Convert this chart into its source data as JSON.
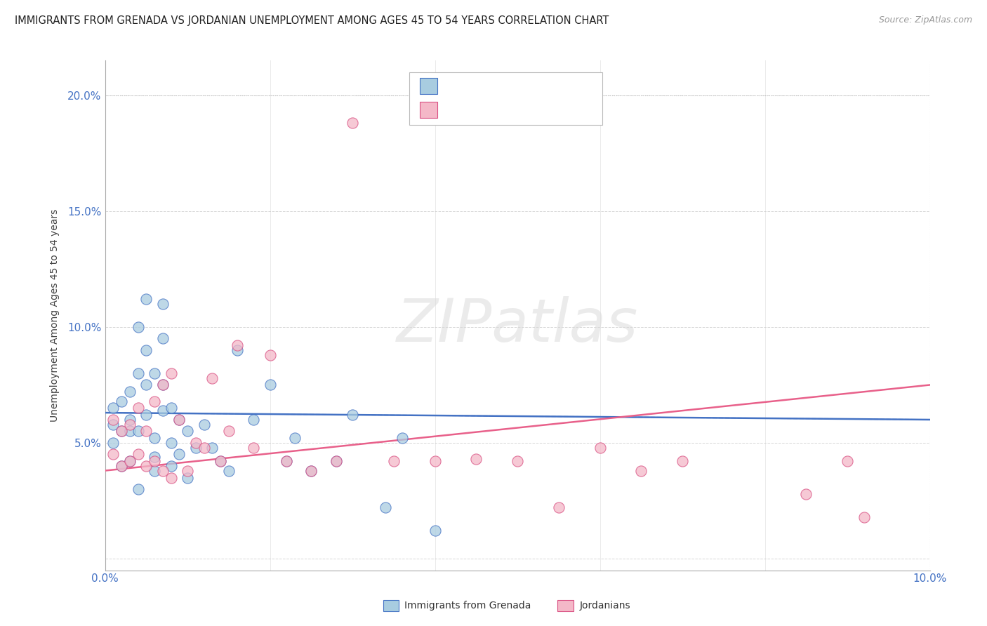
{
  "title": "IMMIGRANTS FROM GRENADA VS JORDANIAN UNEMPLOYMENT AMONG AGES 45 TO 54 YEARS CORRELATION CHART",
  "source": "Source: ZipAtlas.com",
  "ylabel": "Unemployment Among Ages 45 to 54 years",
  "xlim": [
    0.0,
    0.1
  ],
  "ylim": [
    -0.005,
    0.215
  ],
  "xticks": [
    0.0,
    0.02,
    0.04,
    0.06,
    0.08,
    0.1
  ],
  "yticks": [
    0.0,
    0.05,
    0.1,
    0.15,
    0.2
  ],
  "xtick_labels": [
    "0.0%",
    "",
    "",
    "",
    "",
    "10.0%"
  ],
  "ytick_labels": [
    "",
    "5.0%",
    "10.0%",
    "15.0%",
    "20.0%"
  ],
  "color_blue": "#a8cce0",
  "color_pink": "#f4b8c8",
  "color_blue_line": "#4472c4",
  "color_pink_line": "#e8608a",
  "color_blue_edge": "#4472c4",
  "color_pink_edge": "#d94f82",
  "watermark_color": "#d8d8d8",
  "blue_line_start_y": 0.063,
  "blue_line_end_y": 0.06,
  "pink_line_start_y": 0.038,
  "pink_line_end_y": 0.075,
  "blue_scatter_x": [
    0.001,
    0.001,
    0.001,
    0.002,
    0.002,
    0.002,
    0.003,
    0.003,
    0.003,
    0.003,
    0.004,
    0.004,
    0.004,
    0.004,
    0.005,
    0.005,
    0.005,
    0.005,
    0.006,
    0.006,
    0.006,
    0.006,
    0.007,
    0.007,
    0.007,
    0.007,
    0.008,
    0.008,
    0.008,
    0.009,
    0.009,
    0.01,
    0.01,
    0.011,
    0.012,
    0.013,
    0.014,
    0.015,
    0.016,
    0.018,
    0.02,
    0.022,
    0.023,
    0.025,
    0.028,
    0.03,
    0.034,
    0.036,
    0.04
  ],
  "blue_scatter_y": [
    0.065,
    0.058,
    0.05,
    0.04,
    0.055,
    0.068,
    0.042,
    0.055,
    0.072,
    0.06,
    0.03,
    0.055,
    0.08,
    0.1,
    0.062,
    0.075,
    0.09,
    0.112,
    0.038,
    0.044,
    0.052,
    0.08,
    0.064,
    0.075,
    0.095,
    0.11,
    0.04,
    0.05,
    0.065,
    0.045,
    0.06,
    0.035,
    0.055,
    0.048,
    0.058,
    0.048,
    0.042,
    0.038,
    0.09,
    0.06,
    0.075,
    0.042,
    0.052,
    0.038,
    0.042,
    0.062,
    0.022,
    0.052,
    0.012
  ],
  "pink_scatter_x": [
    0.001,
    0.001,
    0.002,
    0.002,
    0.003,
    0.003,
    0.004,
    0.004,
    0.005,
    0.005,
    0.006,
    0.006,
    0.007,
    0.007,
    0.008,
    0.008,
    0.009,
    0.01,
    0.011,
    0.012,
    0.013,
    0.014,
    0.015,
    0.016,
    0.018,
    0.02,
    0.022,
    0.025,
    0.028,
    0.03,
    0.035,
    0.04,
    0.045,
    0.05,
    0.055,
    0.06,
    0.065,
    0.07,
    0.085,
    0.09,
    0.092
  ],
  "pink_scatter_y": [
    0.045,
    0.06,
    0.04,
    0.055,
    0.042,
    0.058,
    0.045,
    0.065,
    0.04,
    0.055,
    0.042,
    0.068,
    0.038,
    0.075,
    0.035,
    0.08,
    0.06,
    0.038,
    0.05,
    0.048,
    0.078,
    0.042,
    0.055,
    0.092,
    0.048,
    0.088,
    0.042,
    0.038,
    0.042,
    0.188,
    0.042,
    0.042,
    0.043,
    0.042,
    0.022,
    0.048,
    0.038,
    0.042,
    0.028,
    0.042,
    0.018
  ]
}
